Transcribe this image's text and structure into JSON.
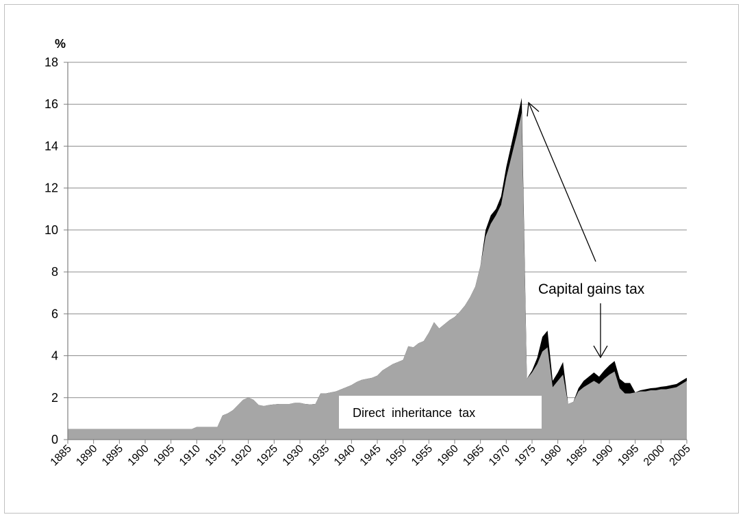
{
  "chart_data": {
    "type": "area",
    "stacked": true,
    "ylabel": "%",
    "xlabel": "",
    "title": "",
    "ylim": [
      0,
      18
    ],
    "xlim": [
      1885,
      2005
    ],
    "yticks": [
      0,
      2,
      4,
      6,
      8,
      10,
      12,
      14,
      16,
      18
    ],
    "xticks": [
      1885,
      1890,
      1895,
      1900,
      1905,
      1910,
      1915,
      1920,
      1925,
      1930,
      1935,
      1940,
      1945,
      1950,
      1955,
      1960,
      1965,
      1970,
      1975,
      1980,
      1985,
      1990,
      1995,
      2000,
      2005
    ],
    "grid": "horizontal",
    "colors": {
      "inheritance": "#a6a6a6",
      "capital_gains": "#000000"
    },
    "x": [
      1885,
      1909,
      1910,
      1914,
      1915,
      1916,
      1917,
      1918,
      1919,
      1920,
      1921,
      1922,
      1923,
      1924,
      1925,
      1926,
      1927,
      1928,
      1929,
      1930,
      1931,
      1932,
      1933,
      1934,
      1935,
      1936,
      1937,
      1938,
      1939,
      1940,
      1941,
      1942,
      1943,
      1944,
      1945,
      1946,
      1947,
      1948,
      1949,
      1950,
      1951,
      1952,
      1953,
      1954,
      1955,
      1956,
      1957,
      1958,
      1959,
      1960,
      1961,
      1962,
      1963,
      1964,
      1965,
      1966,
      1967,
      1968,
      1969,
      1970,
      1971,
      1972,
      1973,
      1974,
      1975,
      1976,
      1977,
      1978,
      1979,
      1980,
      1981,
      1982,
      1983,
      1984,
      1985,
      1986,
      1987,
      1988,
      1989,
      1990,
      1991,
      1992,
      1993,
      1994,
      1995,
      1996,
      1997,
      1998,
      1999,
      2000,
      2001,
      2002,
      2003,
      2004,
      2005
    ],
    "series": [
      {
        "name": "Direct inheritance tax",
        "values": [
          0.5,
          0.5,
          0.6,
          0.6,
          1.15,
          1.25,
          1.4,
          1.65,
          1.9,
          2.0,
          1.9,
          1.65,
          1.6,
          1.65,
          1.68,
          1.7,
          1.7,
          1.7,
          1.75,
          1.75,
          1.7,
          1.68,
          1.7,
          2.2,
          2.2,
          2.25,
          2.3,
          2.4,
          2.5,
          2.6,
          2.75,
          2.85,
          2.9,
          2.95,
          3.05,
          3.3,
          3.45,
          3.6,
          3.7,
          3.8,
          4.45,
          4.4,
          4.6,
          4.7,
          5.1,
          5.6,
          5.3,
          5.5,
          5.7,
          5.85,
          6.1,
          6.4,
          6.8,
          7.3,
          8.3,
          9.7,
          10.3,
          10.7,
          11.2,
          12.5,
          13.5,
          14.5,
          15.6,
          2.9,
          3.2,
          3.6,
          4.2,
          4.4,
          2.5,
          2.8,
          3.1,
          1.7,
          1.8,
          2.3,
          2.5,
          2.65,
          2.8,
          2.65,
          2.9,
          3.1,
          3.25,
          2.45,
          2.2,
          2.2,
          2.25,
          2.3,
          2.3,
          2.35,
          2.35,
          2.4,
          2.4,
          2.45,
          2.5,
          2.65,
          2.8
        ]
      },
      {
        "name": "Capital gains tax",
        "values": [
          0,
          0,
          0,
          0,
          0,
          0,
          0,
          0,
          0,
          0,
          0,
          0,
          0,
          0,
          0,
          0,
          0,
          0,
          0,
          0,
          0,
          0,
          0,
          0,
          0,
          0,
          0,
          0,
          0,
          0,
          0,
          0,
          0,
          0,
          0,
          0,
          0,
          0,
          0,
          0,
          0,
          0,
          0,
          0,
          0,
          0,
          0,
          0,
          0,
          0,
          0,
          0,
          0,
          0,
          0,
          0.3,
          0.4,
          0.3,
          0.4,
          0.5,
          0.6,
          0.7,
          0.7,
          0,
          0.1,
          0.3,
          0.7,
          0.8,
          0.3,
          0.4,
          0.6,
          0,
          0,
          0.15,
          0.3,
          0.35,
          0.4,
          0.35,
          0.4,
          0.45,
          0.5,
          0.45,
          0.5,
          0.5,
          0,
          0.05,
          0.1,
          0.1,
          0.12,
          0.12,
          0.15,
          0.15,
          0.15,
          0.15,
          0.15
        ]
      }
    ],
    "annotations": [
      {
        "id": "capital-gains-label",
        "text": "Capital gains tax"
      },
      {
        "id": "inheritance-label",
        "text": "Direct  inheritance  tax"
      }
    ]
  }
}
